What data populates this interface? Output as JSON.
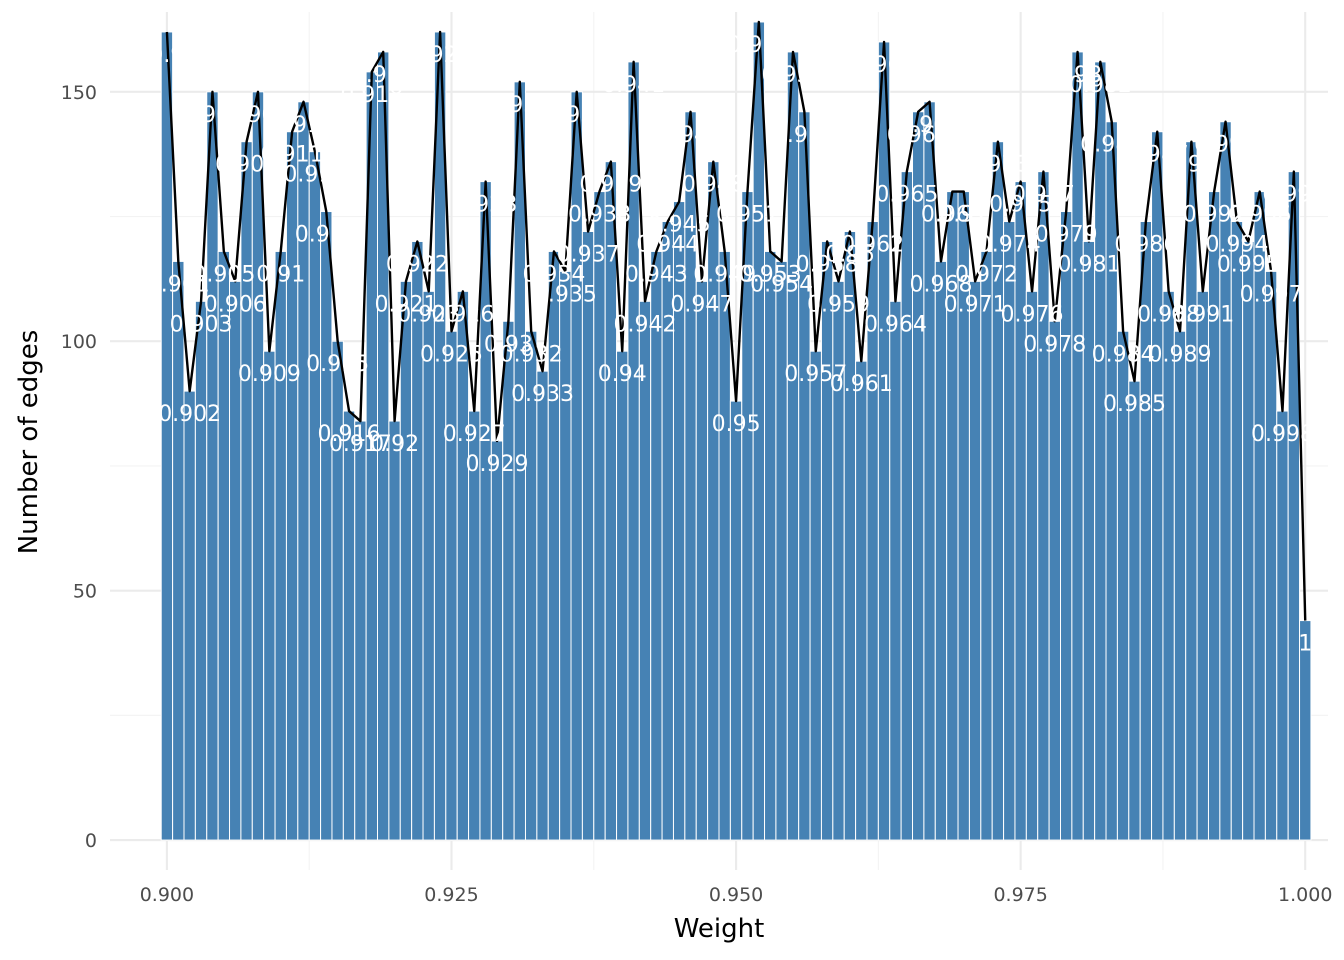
{
  "chart_data": {
    "type": "bar",
    "title": "",
    "xlabel": "Weight",
    "ylabel": "Number of edges",
    "xlim": [
      0.895,
      1.002
    ],
    "ylim": [
      -6,
      166
    ],
    "x_ticks": [
      "0.900",
      "0.925",
      "0.950",
      "0.975",
      "1.000"
    ],
    "x_tick_values": [
      0.9,
      0.925,
      0.95,
      0.975,
      1.0
    ],
    "y_ticks": [
      "0",
      "50",
      "100",
      "150"
    ],
    "y_tick_values": [
      0,
      50,
      100,
      150
    ],
    "grid": true,
    "bar_color": "#4682b4",
    "line_color": "#000000",
    "label_color": "#ffffff",
    "x": [
      0.9,
      0.901,
      0.902,
      0.903,
      0.904,
      0.905,
      0.906,
      0.907,
      0.908,
      0.909,
      0.91,
      0.911,
      0.912,
      0.913,
      0.914,
      0.915,
      0.916,
      0.917,
      0.918,
      0.919,
      0.92,
      0.921,
      0.922,
      0.923,
      0.924,
      0.925,
      0.926,
      0.927,
      0.928,
      0.929,
      0.93,
      0.931,
      0.932,
      0.933,
      0.934,
      0.935,
      0.936,
      0.937,
      0.938,
      0.939,
      0.94,
      0.941,
      0.942,
      0.943,
      0.944,
      0.945,
      0.946,
      0.947,
      0.948,
      0.949,
      0.95,
      0.951,
      0.952,
      0.953,
      0.954,
      0.955,
      0.956,
      0.957,
      0.958,
      0.959,
      0.96,
      0.961,
      0.962,
      0.963,
      0.964,
      0.965,
      0.966,
      0.967,
      0.968,
      0.969,
      0.97,
      0.971,
      0.972,
      0.973,
      0.974,
      0.975,
      0.976,
      0.977,
      0.978,
      0.979,
      0.98,
      0.981,
      0.982,
      0.983,
      0.984,
      0.985,
      0.986,
      0.987,
      0.988,
      0.989,
      0.99,
      0.991,
      0.992,
      0.993,
      0.994,
      0.995,
      0.996,
      0.997,
      0.998,
      0.999,
      1.0
    ],
    "values": [
      162,
      116,
      90,
      108,
      150,
      118,
      112,
      140,
      150,
      98,
      118,
      142,
      148,
      138,
      126,
      100,
      86,
      84,
      154,
      158,
      84,
      112,
      120,
      110,
      162,
      102,
      110,
      86,
      132,
      80,
      104,
      152,
      102,
      94,
      118,
      114,
      150,
      122,
      130,
      136,
      98,
      156,
      108,
      118,
      124,
      128,
      146,
      112,
      136,
      118,
      88,
      130,
      164,
      118,
      116,
      158,
      146,
      98,
      120,
      112,
      122,
      96,
      124,
      160,
      108,
      134,
      146,
      148,
      116,
      130,
      130,
      112,
      118,
      140,
      124,
      132,
      110,
      134,
      104,
      126,
      158,
      120,
      156,
      144,
      102,
      92,
      124,
      142,
      110,
      102,
      140,
      110,
      130,
      144,
      124,
      120,
      130,
      114,
      86,
      134,
      44
    ],
    "labels": [
      "0.9",
      "0.901",
      "0.902",
      "0.903",
      "0.904",
      "0.905",
      "0.906",
      "0.907",
      "0.908",
      "0.909",
      "0.91",
      "0.911",
      "0.912",
      "0.913",
      "0.914",
      "0.915",
      "0.916",
      "0.917",
      "0.918",
      "0.919",
      "0.92",
      "0.921",
      "0.922",
      "0.923",
      "0.924",
      "0.925",
      "0.926",
      "0.927",
      "0.928",
      "0.929",
      "0.93",
      "0.931",
      "0.932",
      "0.933",
      "0.934",
      "0.935",
      "0.936",
      "0.937",
      "0.938",
      "0.939",
      "0.94",
      "0.941",
      "0.942",
      "0.943",
      "0.944",
      "0.945",
      "0.946",
      "0.947",
      "0.948",
      "0.949",
      "0.95",
      "0.951",
      "0.952",
      "0.953",
      "0.954",
      "0.955",
      "0.956",
      "0.957",
      "0.958",
      "0.959",
      "0.96",
      "0.961",
      "0.962",
      "0.963",
      "0.964",
      "0.965",
      "0.966",
      "0.967",
      "0.968",
      "0.969",
      "0.97",
      "0.971",
      "0.972",
      "0.973",
      "0.974",
      "0.975",
      "0.976",
      "0.977",
      "0.978",
      "0.979",
      "0.98",
      "0.981",
      "0.982",
      "0.983",
      "0.984",
      "0.985",
      "0.986",
      "0.987",
      "0.988",
      "0.989",
      "0.99",
      "0.991",
      "0.992",
      "0.993",
      "0.994",
      "0.995",
      "0.996",
      "0.997",
      "0.998",
      "0.999",
      "1"
    ]
  }
}
